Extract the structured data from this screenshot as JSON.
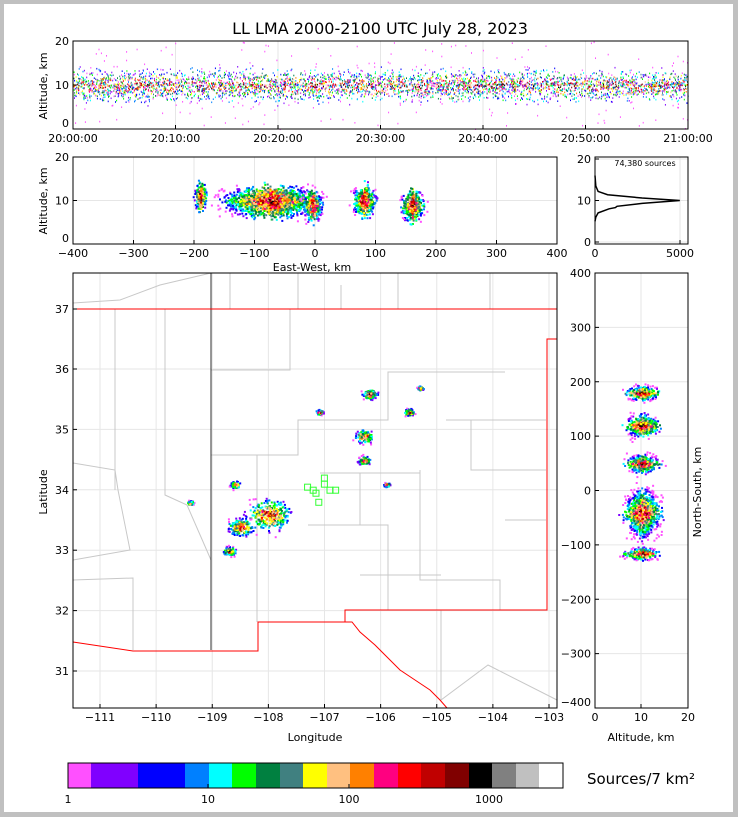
{
  "title": "LL LMA 2000-2100 UTC July 28, 2023",
  "chart_data": [
    {
      "type": "scatter",
      "name": "altitude-vs-time",
      "ylabel": "Altitude, km",
      "ylim": [
        0,
        20
      ],
      "yticks": [
        "0",
        "10",
        "20"
      ],
      "xticks": [
        "20:00:00",
        "20:10:00",
        "20:20:00",
        "20:30:00",
        "20:40:00",
        "20:50:00",
        "21:00:00"
      ],
      "xlim_minutes": [
        0,
        60
      ],
      "altitude_band_km": [
        5,
        14
      ],
      "peak_altitude_km": 10
    },
    {
      "type": "heatmap",
      "name": "altitude-vs-east-west",
      "xlabel": "East-West, km",
      "ylabel": "Altitude, km",
      "xlim": [
        -400,
        400
      ],
      "ylim": [
        0,
        20
      ],
      "xticks": [
        "−400",
        "−300",
        "−200",
        "−100",
        "0",
        "100",
        "200",
        "300",
        "400"
      ],
      "yticks": [
        "0",
        "10",
        "20"
      ],
      "clusters_km": [
        [
          -75,
          10,
          60
        ],
        [
          -5,
          9,
          12
        ],
        [
          80,
          10,
          15
        ],
        [
          160,
          9,
          15
        ],
        [
          -190,
          11,
          8
        ]
      ]
    },
    {
      "type": "line",
      "name": "altitude-histogram",
      "annotation": "74,380 sources",
      "xlim": [
        0,
        5500
      ],
      "ylim": [
        0,
        20
      ],
      "xticks": [
        "0",
        "5000"
      ],
      "yticks": [
        "0",
        "10",
        "20"
      ],
      "x": [
        0,
        50,
        200,
        900,
        1300,
        1400,
        3000,
        5400,
        3000,
        800,
        200,
        50,
        0
      ],
      "y": [
        5,
        6,
        7,
        8,
        8.3,
        8.6,
        9.3,
        10,
        10.6,
        11.4,
        12.2,
        13.5,
        16
      ]
    },
    {
      "type": "heatmap",
      "name": "plan-view-map",
      "xlabel": "Longitude",
      "ylabel": "Latitude",
      "xlim": [
        -111.5,
        -102.9
      ],
      "ylim": [
        30.4,
        37.6
      ],
      "xticks": [
        "−111",
        "−110",
        "−109",
        "−108",
        "−107",
        "−106",
        "−105",
        "−104",
        "−103"
      ],
      "yticks": [
        "31",
        "32",
        "33",
        "34",
        "35",
        "36",
        "37"
      ],
      "clusters_deg": [
        [
          -108.0,
          33.6,
          0.35
        ],
        [
          -108.5,
          33.4,
          0.2
        ],
        [
          -106.3,
          34.9,
          0.15
        ],
        [
          -106.2,
          35.6,
          0.12
        ],
        [
          -106.3,
          34.5,
          0.1
        ],
        [
          -105.5,
          35.3,
          0.08
        ],
        [
          -107.1,
          35.3,
          0.06
        ],
        [
          -108.7,
          33.0,
          0.1
        ],
        [
          -108.6,
          34.1,
          0.08
        ],
        [
          -109.4,
          33.8,
          0.05
        ],
        [
          -105.3,
          35.7,
          0.05
        ],
        [
          -105.9,
          34.1,
          0.05
        ]
      ],
      "stations_deg": [
        [
          -107.2,
          34.0
        ],
        [
          -107.0,
          34.1
        ],
        [
          -106.9,
          34.0
        ],
        [
          -107.1,
          33.8
        ],
        [
          -107.3,
          34.05
        ],
        [
          -107.0,
          34.2
        ],
        [
          -106.8,
          34.0
        ],
        [
          -107.15,
          33.95
        ]
      ]
    },
    {
      "type": "heatmap",
      "name": "north-south-vs-altitude",
      "xlabel": "Altitude, km",
      "ylabel": "North-South, km",
      "xlim": [
        0,
        20
      ],
      "ylim": [
        -400,
        400
      ],
      "xticks": [
        "0",
        "10",
        "20"
      ],
      "yticks": [
        "−400",
        "−300",
        "−200",
        "−100",
        "0",
        "100",
        "200",
        "300",
        "400"
      ],
      "clusters_km": [
        [
          10,
          180,
          10
        ],
        [
          10,
          120,
          15
        ],
        [
          10,
          50,
          12
        ],
        [
          10,
          -40,
          30
        ],
        [
          10,
          -115,
          8
        ]
      ]
    }
  ],
  "colorbar": {
    "label": "Sources/7 km²",
    "tick_labels": [
      "1",
      "10",
      "100",
      "1000"
    ],
    "colors": [
      "#ff50ff",
      "#8000ff",
      "#0000ff",
      "#0080ff",
      "#00ffff",
      "#00ff00",
      "#008040",
      "#408080",
      "#ffff00",
      "#ffc080",
      "#ff8000",
      "#ff0080",
      "#ff0000",
      "#c00000",
      "#800000",
      "#000000",
      "#808080",
      "#c0c0c0",
      "#ffffff"
    ]
  }
}
